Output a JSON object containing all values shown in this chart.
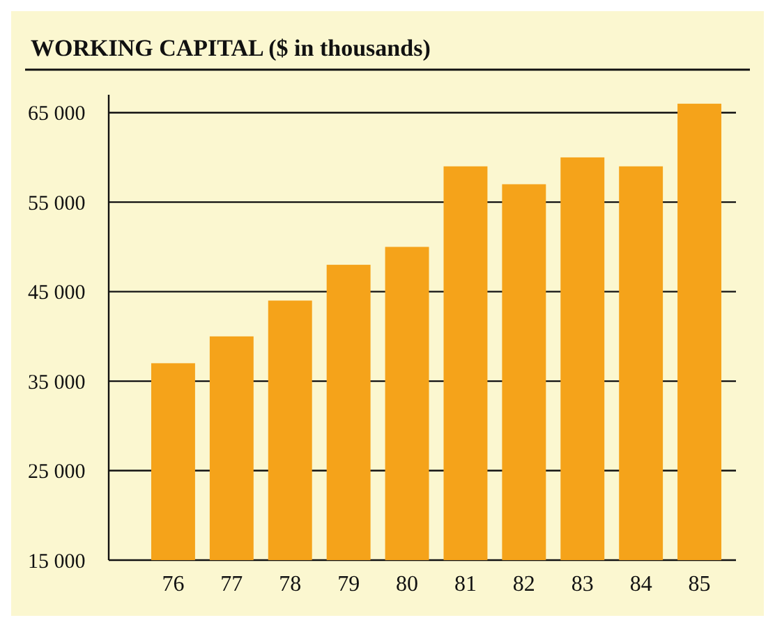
{
  "chart_data": {
    "type": "bar",
    "title": "WORKING CAPITAL ($ in thousands)",
    "categories": [
      "76",
      "77",
      "78",
      "79",
      "80",
      "81",
      "82",
      "83",
      "84",
      "85"
    ],
    "values": [
      37000,
      40000,
      44000,
      48000,
      50000,
      59000,
      57000,
      60000,
      59000,
      66000
    ],
    "color": "#f5a31a",
    "ylim": [
      15000,
      67000
    ],
    "yticks": [
      {
        "value": 15000,
        "label": "15 000"
      },
      {
        "value": 25000,
        "label": "25 000"
      },
      {
        "value": 35000,
        "label": "35 000"
      },
      {
        "value": 45000,
        "label": "45 000"
      },
      {
        "value": 55000,
        "label": "55 000"
      },
      {
        "value": 65000,
        "label": "65 000"
      }
    ],
    "grid": "y"
  }
}
